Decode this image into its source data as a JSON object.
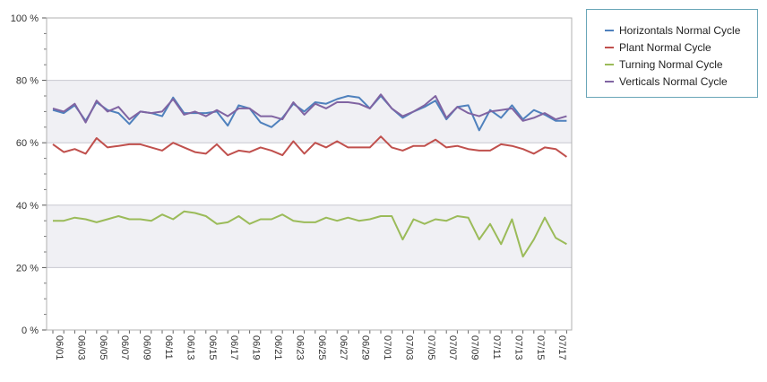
{
  "chart_data": {
    "type": "line",
    "title": "",
    "xlabel": "",
    "ylabel": "",
    "ylim": [
      0,
      100
    ],
    "y_ticks": [
      "0 %",
      "20 %",
      "40 %",
      "60 %",
      "80 %",
      "100 %"
    ],
    "y_tick_values": [
      0,
      20,
      40,
      60,
      80,
      100
    ],
    "shaded_bands": [
      [
        20,
        40
      ],
      [
        60,
        80
      ]
    ],
    "legend_position": "top-right",
    "x": [
      "06/01",
      "06/02",
      "06/03",
      "06/04",
      "06/05",
      "06/06",
      "06/07",
      "06/08",
      "06/09",
      "06/10",
      "06/11",
      "06/12",
      "06/13",
      "06/14",
      "06/15",
      "06/16",
      "06/17",
      "06/18",
      "06/19",
      "06/20",
      "06/21",
      "06/22",
      "06/23",
      "06/24",
      "06/25",
      "06/26",
      "06/27",
      "06/28",
      "06/29",
      "06/30",
      "07/01",
      "07/02",
      "07/03",
      "07/04",
      "07/05",
      "07/06",
      "07/07",
      "07/08",
      "07/09",
      "07/10",
      "07/11",
      "07/12",
      "07/13",
      "07/14",
      "07/15",
      "07/16",
      "07/17",
      "07/18"
    ],
    "x_tick_labels": [
      "06/01",
      "06/03",
      "06/05",
      "06/07",
      "06/09",
      "06/11",
      "06/13",
      "06/15",
      "06/17",
      "06/19",
      "06/21",
      "06/23",
      "06/25",
      "06/27",
      "06/29",
      "07/01",
      "07/03",
      "07/05",
      "07/07",
      "07/09",
      "07/11",
      "07/13",
      "07/15",
      "07/17"
    ],
    "series": [
      {
        "name": "Horizontals Normal Cycle",
        "color": "#4f81bd",
        "values": [
          70.5,
          69.5,
          72,
          67,
          73,
          70.5,
          69.5,
          66,
          70,
          69.5,
          68.5,
          74.5,
          69.5,
          69.5,
          69.5,
          70,
          65.5,
          72,
          71,
          66.5,
          65,
          68,
          72.5,
          70,
          73,
          72.5,
          74,
          75,
          74.5,
          71,
          75,
          71,
          68,
          70,
          71.5,
          73.5,
          67.5,
          71.5,
          72,
          64,
          70.5,
          68,
          72,
          67.5,
          70.5,
          69,
          67,
          67
        ]
      },
      {
        "name": "Plant Normal Cycle",
        "color": "#c0504d",
        "values": [
          59.5,
          57,
          58,
          56.5,
          61.5,
          58.5,
          59,
          59.5,
          59.5,
          58.5,
          57.5,
          60,
          58.5,
          57,
          56.5,
          59.5,
          56,
          57.5,
          57,
          58.5,
          57.5,
          56,
          60.5,
          56.5,
          60,
          58.5,
          60.5,
          58.5,
          58.5,
          58.5,
          62,
          58.5,
          57.5,
          59,
          59,
          61,
          58.5,
          59,
          58,
          57.5,
          57.5,
          59.5,
          59,
          58,
          56.5,
          58.5,
          58,
          55.5
        ]
      },
      {
        "name": "Turning Normal Cycle",
        "color": "#9bbb59",
        "values": [
          35,
          35,
          36,
          35.5,
          34.5,
          35.5,
          36.5,
          35.5,
          35.5,
          35,
          37,
          35.5,
          38,
          37.5,
          36.5,
          34,
          34.5,
          36.5,
          34,
          35.5,
          35.5,
          37,
          35,
          34.5,
          34.5,
          36,
          35,
          36,
          35,
          35.5,
          36.5,
          36.5,
          29,
          35.5,
          34,
          35.5,
          35,
          36.5,
          36,
          29,
          34,
          27.5,
          35.5,
          23.5,
          29,
          36,
          29.5,
          27.5
        ]
      },
      {
        "name": "Verticals Normal Cycle",
        "color": "#8064a2",
        "values": [
          71,
          70,
          72.5,
          66.5,
          73.5,
          70,
          71.5,
          67.5,
          70,
          69.5,
          70,
          74,
          69,
          70,
          68.5,
          70.5,
          68.5,
          71,
          71,
          68.5,
          68.5,
          67.5,
          73,
          69,
          72.5,
          71,
          73,
          73,
          72.5,
          71,
          75.5,
          71,
          68.5,
          70,
          72,
          75,
          68,
          71.5,
          69.5,
          68.5,
          70,
          70.5,
          71,
          67,
          68,
          69.5,
          67.5,
          68.5
        ]
      }
    ]
  }
}
